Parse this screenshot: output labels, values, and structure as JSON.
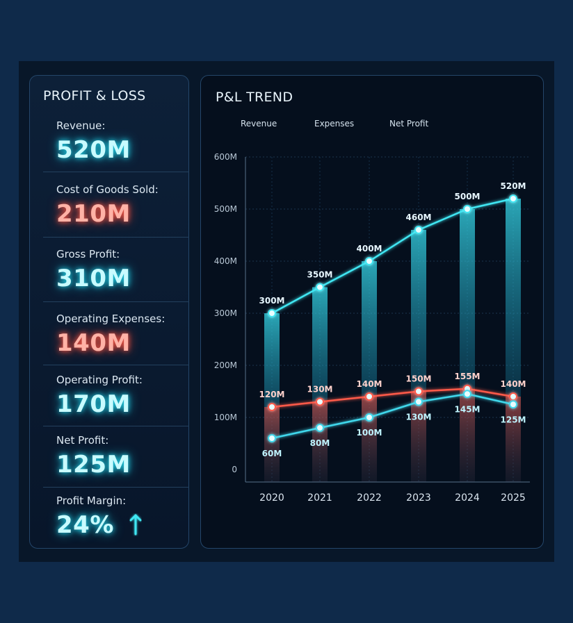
{
  "summary": {
    "title": "PROFIT & LOSS",
    "items": [
      {
        "label": "Revenue:",
        "value": "520M"
      },
      {
        "label": "Cost of Goods Sold:",
        "value": "210M"
      },
      {
        "label": "Gross Profit:",
        "value": "310M"
      },
      {
        "label": "Operating Expenses:",
        "value": "140M"
      },
      {
        "label": "Operating Profit:",
        "value": "170M"
      },
      {
        "label": "Net Profit:",
        "value": "125M"
      },
      {
        "label": "Profit Margin:",
        "value": "24%"
      }
    ],
    "margin_trend_icon": "arrow-up-icon"
  },
  "colors": {
    "revenue": "#3fe6f2",
    "expenses": "#ff5a4a",
    "net_profit": "#3fd8ec",
    "background": "#081729"
  },
  "chart_data": {
    "type": "line",
    "title": "P&L TREND",
    "categories": [
      "2020",
      "2021",
      "2022",
      "2023",
      "2024",
      "2025"
    ],
    "series": [
      {
        "name": "Revenue",
        "values": [
          300,
          350,
          400,
          460,
          500,
          520
        ],
        "labels": [
          "300M",
          "350M",
          "400M",
          "460M",
          "500M",
          "520M"
        ]
      },
      {
        "name": "Expenses",
        "values": [
          120,
          130,
          140,
          150,
          155,
          140
        ],
        "labels": [
          "120M",
          "130M",
          "140M",
          "150M",
          "155M",
          "140M"
        ]
      },
      {
        "name": "Net Profit",
        "values": [
          60,
          80,
          100,
          130,
          145,
          125
        ],
        "labels": [
          "60M",
          "80M",
          "100M",
          "130M",
          "145M",
          "125M"
        ]
      }
    ],
    "yticks": [
      "0",
      "100M",
      "200M",
      "300M",
      "400M",
      "500M",
      "600M"
    ],
    "ylim": [
      0,
      600
    ],
    "legend_position": "top-left",
    "grid": true
  }
}
